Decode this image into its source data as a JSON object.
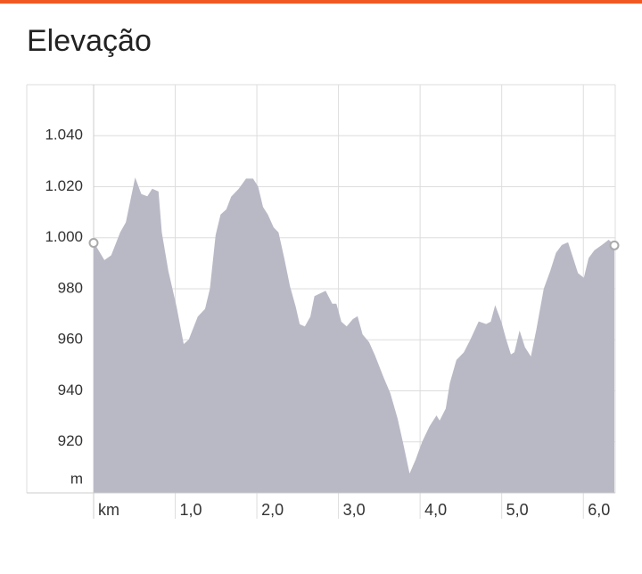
{
  "chart_data": {
    "type": "area",
    "title": "Elevação",
    "y_label": "m",
    "color": "#b9b9c6",
    "grid": true,
    "x": [
      0,
      0.13,
      0.22,
      0.33,
      0.4,
      0.51,
      0.58,
      0.66,
      0.72,
      0.79,
      0.83,
      0.91,
      1.01,
      1.1,
      1.17,
      1.28,
      1.37,
      1.43,
      1.5,
      1.56,
      1.63,
      1.69,
      1.78,
      1.87,
      1.95,
      2.01,
      2.07,
      2.13,
      2.2,
      2.26,
      2.33,
      2.4,
      2.47,
      2.52,
      2.59,
      2.66,
      2.71,
      2.84,
      2.92,
      2.97,
      3.03,
      3.1,
      3.18,
      3.23,
      3.29,
      3.37,
      3.44,
      3.55,
      3.63,
      3.72,
      3.79,
      3.87,
      3.95,
      4.03,
      4.12,
      4.2,
      4.24,
      4.32,
      4.37,
      4.45,
      4.54,
      4.62,
      4.72,
      4.81,
      4.87,
      4.92,
      4.99,
      5.05,
      5.11,
      5.16,
      5.22,
      5.28,
      5.36,
      5.43,
      5.52,
      5.6,
      5.67,
      5.74,
      5.81,
      5.87,
      5.93,
      6.01,
      6.07,
      6.14,
      6.23,
      6.31,
      6.38
    ],
    "values": [
      998,
      991,
      993,
      1002,
      1006,
      1023,
      1017,
      1016,
      1019,
      1018,
      1002,
      987,
      973,
      958,
      960,
      969,
      972,
      980,
      1001,
      1009,
      1011,
      1016,
      1019,
      1023,
      1023,
      1020,
      1012,
      1009,
      1004,
      1002,
      992,
      981,
      973,
      966,
      965,
      969,
      977,
      979,
      974,
      974,
      967,
      965,
      968,
      969,
      962,
      959,
      954,
      945,
      939,
      929,
      919,
      907,
      913,
      920,
      926,
      930,
      928,
      933,
      943,
      952,
      955,
      960,
      967,
      966,
      967,
      973,
      967,
      960,
      954,
      955,
      963,
      957,
      953,
      964,
      980,
      987,
      994,
      997,
      998,
      992,
      986,
      984,
      992,
      995,
      997,
      999,
      997
    ],
    "xlim": [
      0,
      6.38
    ],
    "ylim": [
      900,
      1060
    ],
    "xticks": [
      {
        "value": 0,
        "label": "km"
      },
      {
        "value": 1,
        "label": "1,0"
      },
      {
        "value": 2,
        "label": "2,0"
      },
      {
        "value": 3,
        "label": "3,0"
      },
      {
        "value": 4,
        "label": "4,0"
      },
      {
        "value": 5,
        "label": "5,0"
      },
      {
        "value": 6,
        "label": "6,0"
      }
    ],
    "yticks": [
      920,
      940,
      960,
      980,
      {
        "value": 1000,
        "label": "1.000"
      },
      {
        "value": 1020,
        "label": "1.020"
      },
      {
        "value": 1040,
        "label": "1.040"
      }
    ]
  }
}
